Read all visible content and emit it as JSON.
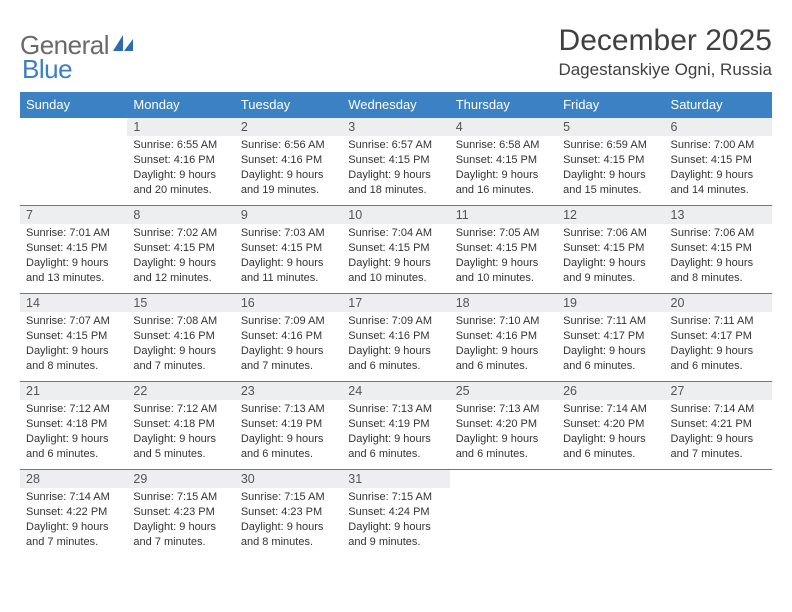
{
  "brand": {
    "name_gray": "General",
    "name_blue": "Blue"
  },
  "title": "December 2025",
  "location": "Dagestanskiye Ogni, Russia",
  "colors": {
    "header_bg": "#3b82c4",
    "header_text": "#ffffff",
    "daynum_bg": "#eceeef",
    "border": "#3b82c4",
    "body_text": "#333333",
    "title_text": "#404040",
    "logo_gray": "#6a6a6a",
    "logo_blue": "#3b7fc4"
  },
  "weekdays": [
    "Sunday",
    "Monday",
    "Tuesday",
    "Wednesday",
    "Thursday",
    "Friday",
    "Saturday"
  ],
  "weeks": [
    [
      {
        "empty": true
      },
      {
        "n": "1",
        "sunrise": "6:55 AM",
        "sunset": "4:16 PM",
        "daylight": "9 hours and 20 minutes."
      },
      {
        "n": "2",
        "sunrise": "6:56 AM",
        "sunset": "4:16 PM",
        "daylight": "9 hours and 19 minutes."
      },
      {
        "n": "3",
        "sunrise": "6:57 AM",
        "sunset": "4:15 PM",
        "daylight": "9 hours and 18 minutes."
      },
      {
        "n": "4",
        "sunrise": "6:58 AM",
        "sunset": "4:15 PM",
        "daylight": "9 hours and 16 minutes."
      },
      {
        "n": "5",
        "sunrise": "6:59 AM",
        "sunset": "4:15 PM",
        "daylight": "9 hours and 15 minutes."
      },
      {
        "n": "6",
        "sunrise": "7:00 AM",
        "sunset": "4:15 PM",
        "daylight": "9 hours and 14 minutes."
      }
    ],
    [
      {
        "n": "7",
        "sunrise": "7:01 AM",
        "sunset": "4:15 PM",
        "daylight": "9 hours and 13 minutes."
      },
      {
        "n": "8",
        "sunrise": "7:02 AM",
        "sunset": "4:15 PM",
        "daylight": "9 hours and 12 minutes."
      },
      {
        "n": "9",
        "sunrise": "7:03 AM",
        "sunset": "4:15 PM",
        "daylight": "9 hours and 11 minutes."
      },
      {
        "n": "10",
        "sunrise": "7:04 AM",
        "sunset": "4:15 PM",
        "daylight": "9 hours and 10 minutes."
      },
      {
        "n": "11",
        "sunrise": "7:05 AM",
        "sunset": "4:15 PM",
        "daylight": "9 hours and 10 minutes."
      },
      {
        "n": "12",
        "sunrise": "7:06 AM",
        "sunset": "4:15 PM",
        "daylight": "9 hours and 9 minutes."
      },
      {
        "n": "13",
        "sunrise": "7:06 AM",
        "sunset": "4:15 PM",
        "daylight": "9 hours and 8 minutes."
      }
    ],
    [
      {
        "n": "14",
        "sunrise": "7:07 AM",
        "sunset": "4:15 PM",
        "daylight": "9 hours and 8 minutes."
      },
      {
        "n": "15",
        "sunrise": "7:08 AM",
        "sunset": "4:16 PM",
        "daylight": "9 hours and 7 minutes."
      },
      {
        "n": "16",
        "sunrise": "7:09 AM",
        "sunset": "4:16 PM",
        "daylight": "9 hours and 7 minutes."
      },
      {
        "n": "17",
        "sunrise": "7:09 AM",
        "sunset": "4:16 PM",
        "daylight": "9 hours and 6 minutes."
      },
      {
        "n": "18",
        "sunrise": "7:10 AM",
        "sunset": "4:16 PM",
        "daylight": "9 hours and 6 minutes."
      },
      {
        "n": "19",
        "sunrise": "7:11 AM",
        "sunset": "4:17 PM",
        "daylight": "9 hours and 6 minutes."
      },
      {
        "n": "20",
        "sunrise": "7:11 AM",
        "sunset": "4:17 PM",
        "daylight": "9 hours and 6 minutes."
      }
    ],
    [
      {
        "n": "21",
        "sunrise": "7:12 AM",
        "sunset": "4:18 PM",
        "daylight": "9 hours and 6 minutes."
      },
      {
        "n": "22",
        "sunrise": "7:12 AM",
        "sunset": "4:18 PM",
        "daylight": "9 hours and 5 minutes."
      },
      {
        "n": "23",
        "sunrise": "7:13 AM",
        "sunset": "4:19 PM",
        "daylight": "9 hours and 6 minutes."
      },
      {
        "n": "24",
        "sunrise": "7:13 AM",
        "sunset": "4:19 PM",
        "daylight": "9 hours and 6 minutes."
      },
      {
        "n": "25",
        "sunrise": "7:13 AM",
        "sunset": "4:20 PM",
        "daylight": "9 hours and 6 minutes."
      },
      {
        "n": "26",
        "sunrise": "7:14 AM",
        "sunset": "4:20 PM",
        "daylight": "9 hours and 6 minutes."
      },
      {
        "n": "27",
        "sunrise": "7:14 AM",
        "sunset": "4:21 PM",
        "daylight": "9 hours and 7 minutes."
      }
    ],
    [
      {
        "n": "28",
        "sunrise": "7:14 AM",
        "sunset": "4:22 PM",
        "daylight": "9 hours and 7 minutes."
      },
      {
        "n": "29",
        "sunrise": "7:15 AM",
        "sunset": "4:23 PM",
        "daylight": "9 hours and 7 minutes."
      },
      {
        "n": "30",
        "sunrise": "7:15 AM",
        "sunset": "4:23 PM",
        "daylight": "9 hours and 8 minutes."
      },
      {
        "n": "31",
        "sunrise": "7:15 AM",
        "sunset": "4:24 PM",
        "daylight": "9 hours and 9 minutes."
      },
      {
        "empty": true
      },
      {
        "empty": true
      },
      {
        "empty": true
      }
    ]
  ],
  "labels": {
    "sunrise": "Sunrise:",
    "sunset": "Sunset:",
    "daylight": "Daylight:"
  }
}
